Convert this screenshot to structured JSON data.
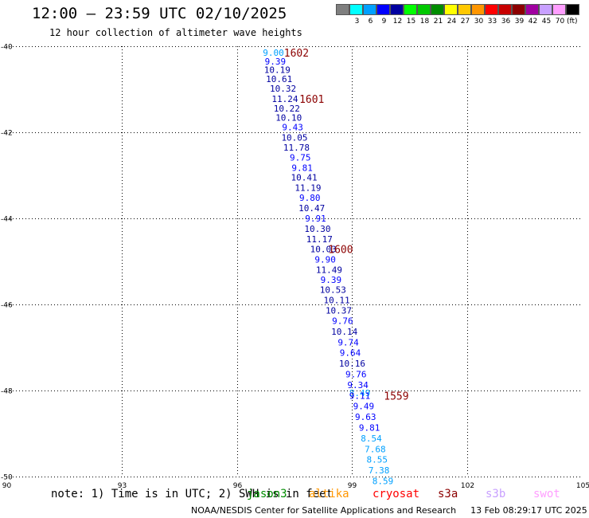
{
  "header": {
    "title": "12:00 – 23:59 UTC 02/10/2025",
    "subtitle": "12 hour collection of altimeter wave heights"
  },
  "colorbar": {
    "unit": "(ft)",
    "swatches": [
      {
        "color": "#7f7f7f",
        "label": ""
      },
      {
        "color": "#00ffff",
        "label": "3"
      },
      {
        "color": "#00a0ff",
        "label": "6"
      },
      {
        "color": "#0000ff",
        "label": "9"
      },
      {
        "color": "#0000a0",
        "label": "12"
      },
      {
        "color": "#00ff00",
        "label": "15"
      },
      {
        "color": "#00c800",
        "label": "18"
      },
      {
        "color": "#008c00",
        "label": "21"
      },
      {
        "color": "#ffff00",
        "label": "24"
      },
      {
        "color": "#ffc800",
        "label": "27"
      },
      {
        "color": "#ff9600",
        "label": "30"
      },
      {
        "color": "#ff0000",
        "label": "33"
      },
      {
        "color": "#c80000",
        "label": "36"
      },
      {
        "color": "#8c0000",
        "label": "39"
      },
      {
        "color": "#a000a0",
        "label": "42"
      },
      {
        "color": "#c8a0ff",
        "label": "45"
      },
      {
        "color": "#ff9eff",
        "label": "70"
      },
      {
        "color": "#000000",
        "label": ""
      }
    ]
  },
  "note": "note: 1) Time is in UTC; 2) SWH is in feet",
  "satellites": [
    {
      "name": "jason3",
      "color": "#008c00"
    },
    {
      "name": "altika",
      "color": "#ff9600"
    },
    {
      "name": "cryosat",
      "color": "#ff0000"
    },
    {
      "name": "s3a",
      "color": "#8c0000"
    },
    {
      "name": "s3b",
      "color": "#c8a0ff"
    },
    {
      "name": "swot",
      "color": "#ff9eff"
    }
  ],
  "footer": {
    "credit": "NOAA/NESDIS Center for Satellite Applications and Research",
    "timestamp": "13 Feb 08:29:17 UTC 2025"
  },
  "chart_data": {
    "type": "scatter",
    "xlim": [
      90,
      105
    ],
    "ylim": [
      -50,
      -40
    ],
    "x_ticks": [
      "90",
      "93",
      "96",
      "99",
      "102",
      "105"
    ],
    "y_ticks": [
      "-40",
      "-42",
      "-44",
      "-46",
      "-48",
      "-50"
    ],
    "grid": true,
    "grid_style": "dotted",
    "points": [
      {
        "x": 96.95,
        "y": -40.15,
        "v": "9.00",
        "c": "#00a0ff"
      },
      {
        "x": 97.0,
        "y": -40.35,
        "v": "9.39",
        "c": "#0000ff"
      },
      {
        "x": 97.05,
        "y": -40.55,
        "v": "10.19",
        "c": "#0000a0"
      },
      {
        "x": 97.1,
        "y": -40.76,
        "v": "10.61",
        "c": "#0000a0"
      },
      {
        "x": 97.2,
        "y": -40.98,
        "v": "10.32",
        "c": "#0000a0"
      },
      {
        "x": 97.25,
        "y": -41.22,
        "v": "11.24",
        "c": "#0000a0"
      },
      {
        "x": 97.3,
        "y": -41.44,
        "v": "10.22",
        "c": "#0000a0"
      },
      {
        "x": 97.35,
        "y": -41.66,
        "v": "10.10",
        "c": "#0000a0"
      },
      {
        "x": 97.45,
        "y": -41.88,
        "v": "9.43",
        "c": "#0000ff"
      },
      {
        "x": 97.5,
        "y": -42.12,
        "v": "10.05",
        "c": "#0000a0"
      },
      {
        "x": 97.55,
        "y": -42.35,
        "v": "11.78",
        "c": "#0000a0"
      },
      {
        "x": 97.65,
        "y": -42.58,
        "v": "9.75",
        "c": "#0000ff"
      },
      {
        "x": 97.7,
        "y": -42.82,
        "v": "9.81",
        "c": "#0000ff"
      },
      {
        "x": 97.75,
        "y": -43.05,
        "v": "10.41",
        "c": "#0000a0"
      },
      {
        "x": 97.85,
        "y": -43.29,
        "v": "11.19",
        "c": "#0000a0"
      },
      {
        "x": 97.9,
        "y": -43.52,
        "v": "9.80",
        "c": "#0000ff"
      },
      {
        "x": 97.95,
        "y": -43.76,
        "v": "10.47",
        "c": "#0000a0"
      },
      {
        "x": 98.05,
        "y": -44.0,
        "v": "9.91",
        "c": "#0000ff"
      },
      {
        "x": 98.1,
        "y": -44.24,
        "v": "10.30",
        "c": "#0000a0"
      },
      {
        "x": 98.15,
        "y": -44.48,
        "v": "11.17",
        "c": "#0000a0"
      },
      {
        "x": 98.25,
        "y": -44.71,
        "v": "10.03",
        "c": "#0000a0"
      },
      {
        "x": 98.3,
        "y": -44.95,
        "v": "9.90",
        "c": "#0000ff"
      },
      {
        "x": 98.4,
        "y": -45.19,
        "v": "11.49",
        "c": "#0000a0"
      },
      {
        "x": 98.45,
        "y": -45.43,
        "v": "9.39",
        "c": "#0000ff"
      },
      {
        "x": 98.5,
        "y": -45.66,
        "v": "10.53",
        "c": "#0000a0"
      },
      {
        "x": 98.6,
        "y": -45.9,
        "v": "10.11",
        "c": "#0000a0"
      },
      {
        "x": 98.65,
        "y": -46.14,
        "v": "10.37",
        "c": "#0000a0"
      },
      {
        "x": 98.75,
        "y": -46.38,
        "v": "9.76",
        "c": "#0000ff"
      },
      {
        "x": 98.8,
        "y": -46.63,
        "v": "10.14",
        "c": "#0000a0"
      },
      {
        "x": 98.9,
        "y": -46.88,
        "v": "9.74",
        "c": "#0000ff"
      },
      {
        "x": 98.95,
        "y": -47.12,
        "v": "9.64",
        "c": "#0000ff"
      },
      {
        "x": 99.0,
        "y": -47.37,
        "v": "10.16",
        "c": "#0000a0"
      },
      {
        "x": 99.1,
        "y": -47.62,
        "v": "9.76",
        "c": "#0000ff"
      },
      {
        "x": 99.15,
        "y": -47.87,
        "v": "9.34",
        "c": "#0000ff"
      },
      {
        "x": 99.2,
        "y": -48.06,
        "v": "8.49",
        "c": "#00a0ff"
      },
      {
        "x": 99.2,
        "y": -48.12,
        "v": "9.11",
        "c": "#0000ff"
      },
      {
        "x": 99.3,
        "y": -48.36,
        "v": "9.49",
        "c": "#0000ff"
      },
      {
        "x": 99.35,
        "y": -48.61,
        "v": "9.63",
        "c": "#0000ff"
      },
      {
        "x": 99.45,
        "y": -48.86,
        "v": "9.81",
        "c": "#0000ff"
      },
      {
        "x": 99.5,
        "y": -49.11,
        "v": "8.54",
        "c": "#00a0ff"
      },
      {
        "x": 99.6,
        "y": -49.36,
        "v": "7.68",
        "c": "#00a0ff"
      },
      {
        "x": 99.65,
        "y": -49.6,
        "v": "8.55",
        "c": "#00a0ff"
      },
      {
        "x": 99.7,
        "y": -49.85,
        "v": "7.38",
        "c": "#00a0ff"
      },
      {
        "x": 99.8,
        "y": -50.1,
        "v": "8.59",
        "c": "#00a0ff"
      }
    ],
    "time_labels": [
      {
        "x": 97.55,
        "y": -40.15,
        "t": "1602",
        "c": "#8c0000"
      },
      {
        "x": 97.95,
        "y": -41.22,
        "t": "1601",
        "c": "#8c0000"
      },
      {
        "x": 98.7,
        "y": -44.71,
        "t": "1600",
        "c": "#8c0000"
      },
      {
        "x": 100.15,
        "y": -48.12,
        "t": "1559",
        "c": "#8c0000"
      }
    ]
  }
}
